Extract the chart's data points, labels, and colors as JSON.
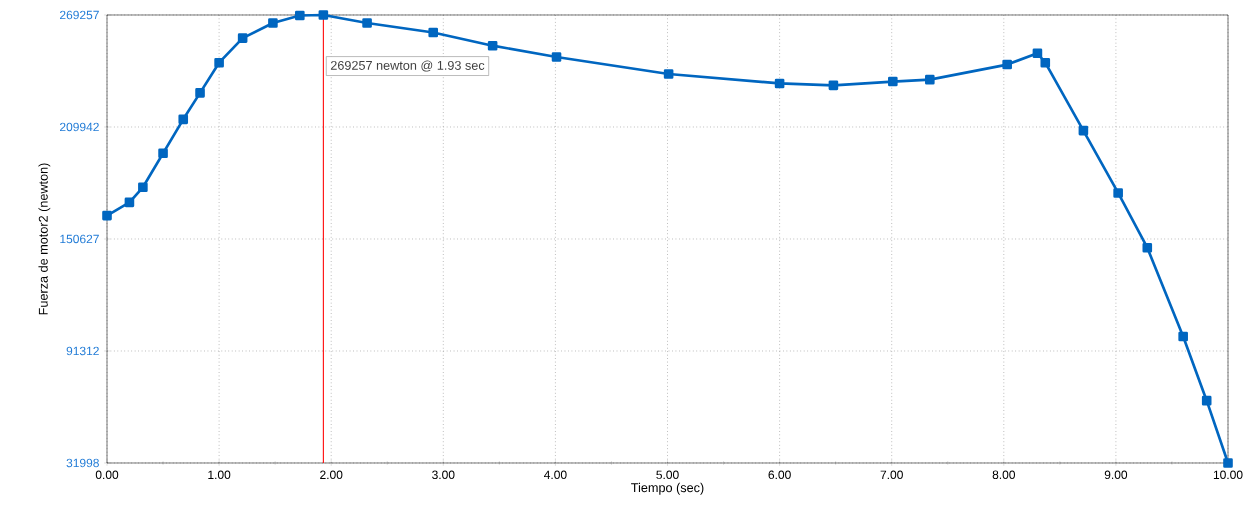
{
  "chart_data": {
    "type": "line",
    "xlabel": "Tiempo (sec)",
    "ylabel": "Fuerza de motor2 (newton)",
    "xlim": [
      0,
      10
    ],
    "ylim": [
      31998,
      269257
    ],
    "xticks": [
      {
        "value": 0,
        "label": "0.00"
      },
      {
        "value": 1,
        "label": "1.00"
      },
      {
        "value": 2,
        "label": "2.00"
      },
      {
        "value": 3,
        "label": "3.00"
      },
      {
        "value": 4,
        "label": "4.00"
      },
      {
        "value": 5,
        "label": "5.00"
      },
      {
        "value": 6,
        "label": "6.00"
      },
      {
        "value": 7,
        "label": "7.00"
      },
      {
        "value": 8,
        "label": "8.00"
      },
      {
        "value": 9,
        "label": "9.00"
      },
      {
        "value": 10,
        "label": "10.00"
      }
    ],
    "yticks": [
      31998,
      91312,
      150627,
      209942,
      269257
    ],
    "grid": true,
    "marker": "square",
    "line_style": "solid",
    "series": [
      {
        "color": "#0066c0",
        "x": [
          0,
          0.2,
          0.32,
          0.5,
          0.68,
          0.83,
          1.0,
          1.21,
          1.48,
          1.72,
          1.93,
          2.32,
          2.91,
          3.44,
          4.01,
          5.01,
          6.0,
          6.48,
          7.01,
          7.34,
          8.03,
          8.3,
          8.37,
          8.71,
          9.02,
          9.28,
          9.6,
          9.81,
          10
        ],
        "values": [
          163000,
          170000,
          178000,
          196000,
          214000,
          228000,
          244000,
          257000,
          265000,
          269000,
          269257,
          265000,
          260000,
          253000,
          247000,
          238000,
          233000,
          232000,
          234000,
          235000,
          243000,
          249000,
          244000,
          208000,
          175000,
          146000,
          99000,
          65000,
          31998
        ]
      }
    ],
    "ref_lines": [
      {
        "axis": "x",
        "value": 1.93,
        "label": "269257 newton @ 1.93 sec",
        "color": "#ff0000"
      }
    ]
  }
}
